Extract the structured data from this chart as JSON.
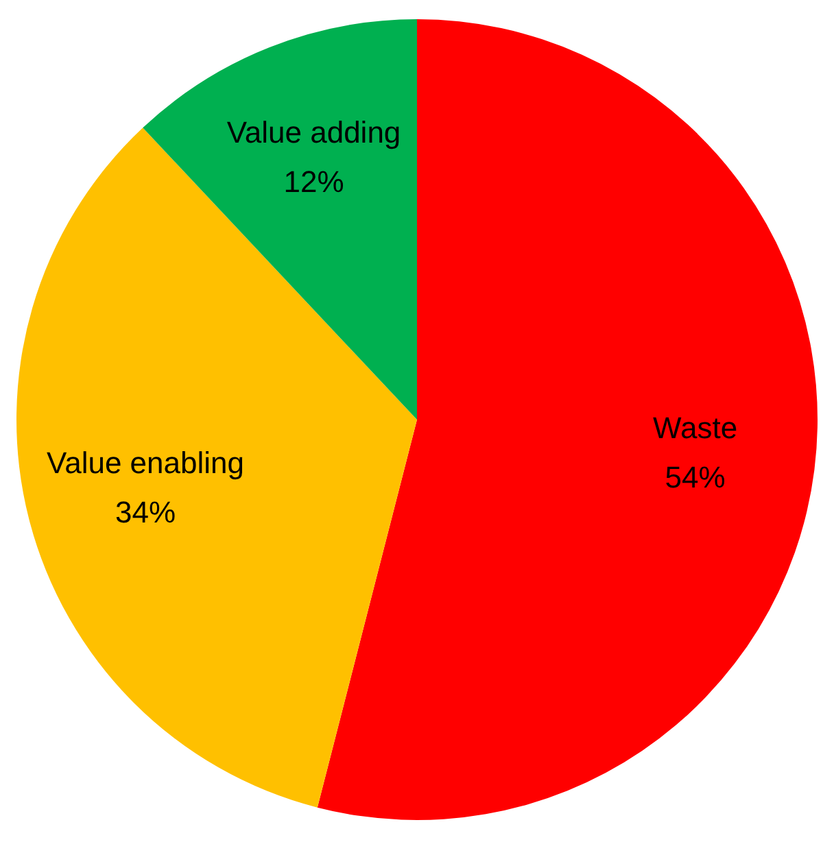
{
  "chart_data": {
    "type": "pie",
    "categories": [
      "Waste",
      "Value enabling",
      "Value adding"
    ],
    "values": [
      54,
      34,
      12
    ],
    "colors": [
      "#ff0000",
      "#ffc000",
      "#00b050"
    ],
    "value_labels": [
      "54%",
      "34%",
      "12%"
    ],
    "legend": false
  }
}
